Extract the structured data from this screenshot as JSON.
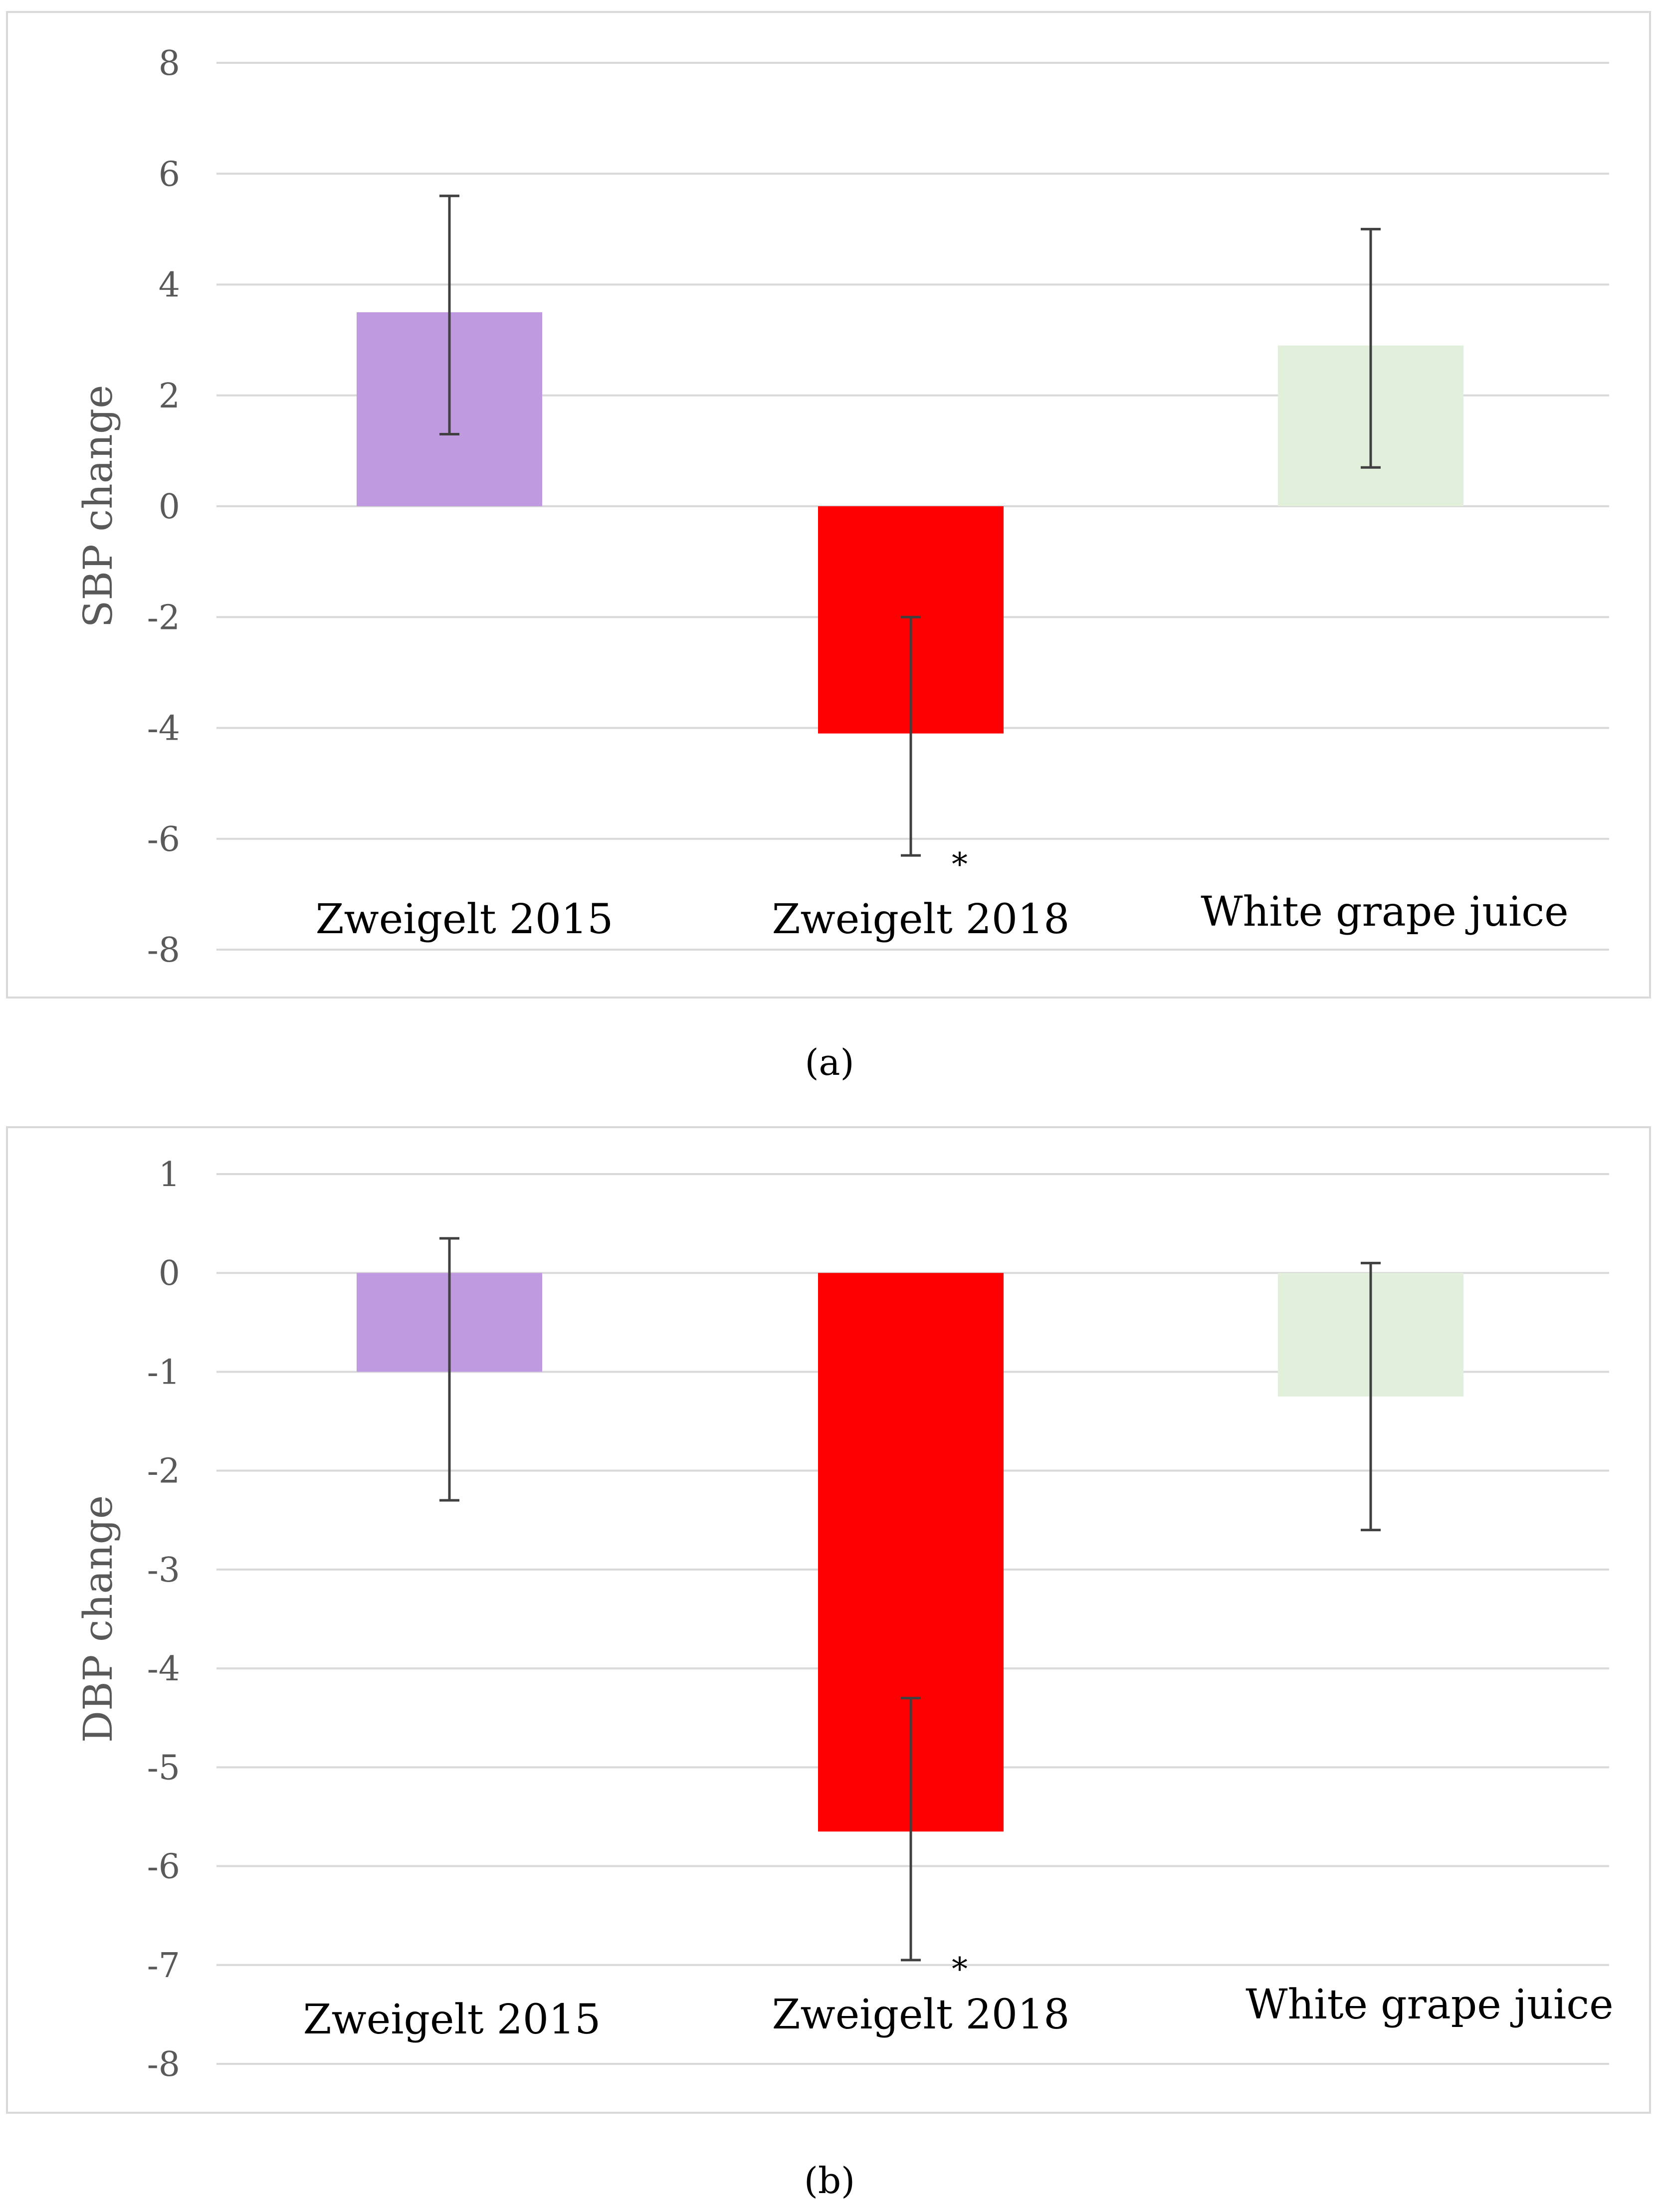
{
  "chart_data": [
    {
      "type": "bar",
      "ylabel": "SBP change",
      "ylim": [
        -8,
        8
      ],
      "yticks": [
        8,
        6,
        4,
        2,
        0,
        -2,
        -4,
        -6,
        -8
      ],
      "categories": [
        "Zweigelt 2015",
        "Zweigelt 2018",
        "White grape juice"
      ],
      "values": [
        3.5,
        -4.1,
        2.9
      ],
      "error_low": [
        1.3,
        -6.3,
        0.7
      ],
      "error_high": [
        5.6,
        -2.0,
        5.0
      ],
      "annotations": [
        "",
        "*",
        ""
      ],
      "colors": [
        "#c09ae0",
        "#ff0000",
        "#e2efda"
      ],
      "gridlines": true,
      "caption": "(a)"
    },
    {
      "type": "bar",
      "ylabel": "DBP change",
      "ylim": [
        -8,
        1
      ],
      "yticks": [
        1,
        0,
        -1,
        -2,
        -3,
        -4,
        -5,
        -6,
        -7,
        -8
      ],
      "categories": [
        "Zweigelt 2015",
        "Zweigelt 2018",
        "White grape juice"
      ],
      "values": [
        -1.0,
        -5.65,
        -1.25
      ],
      "error_low": [
        -2.3,
        -6.95,
        -2.6
      ],
      "error_high": [
        0.35,
        -4.3,
        0.1
      ],
      "annotations": [
        "",
        "*",
        ""
      ],
      "colors": [
        "#c09ae0",
        "#ff0000",
        "#e2efda"
      ],
      "gridlines": true,
      "caption": "(b)"
    }
  ]
}
